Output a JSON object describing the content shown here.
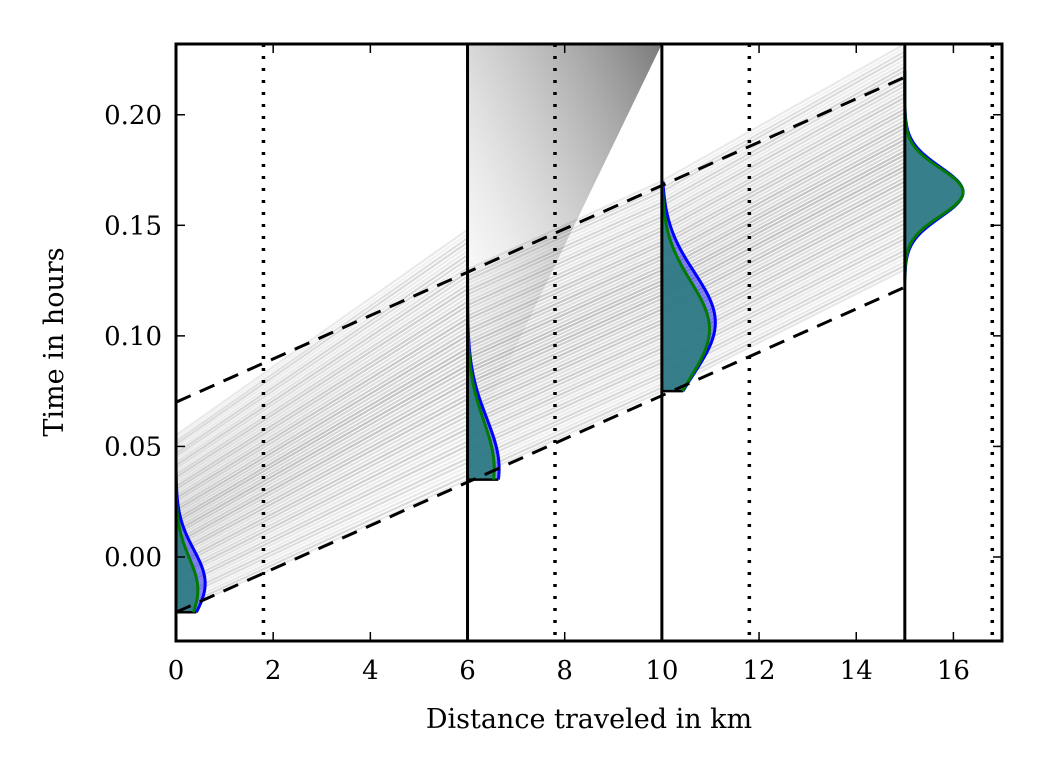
{
  "chart_data": {
    "type": "line",
    "title": "",
    "xlabel": "Distance traveled in km",
    "ylabel": "Time in hours",
    "xlim": [
      0,
      17
    ],
    "ylim": [
      -0.038,
      0.232
    ],
    "x_ticks": [
      0,
      2,
      4,
      6,
      8,
      10,
      12,
      14,
      16
    ],
    "x_tick_labels": [
      "0",
      "2",
      "4",
      "6",
      "8",
      "10",
      "12",
      "14",
      "16"
    ],
    "y_ticks": [
      0.0,
      0.05,
      0.1,
      0.15,
      0.2
    ],
    "y_tick_labels": [
      "0.00",
      "0.05",
      "0.10",
      "0.15",
      "0.20"
    ],
    "grid": false,
    "legend": "none",
    "station_lines_km": [
      6,
      10,
      15
    ],
    "dotted_lines_km": [
      1.8,
      7.8,
      11.8,
      16.8
    ],
    "envelope_lines": [
      {
        "x": [
          0,
          15
        ],
        "y": [
          0.07,
          0.217
        ]
      },
      {
        "x": [
          0,
          15
        ],
        "y": [
          -0.025,
          0.122
        ]
      }
    ],
    "trajectory_segments": [
      {
        "x_start": 0,
        "x_end": 6,
        "y_start_range": [
          -0.025,
          0.055
        ],
        "y_end_range": [
          0.035,
          0.148
        ],
        "count": 60
      },
      {
        "x_start": 6,
        "x_end": 10,
        "y_start_range": [
          0.035,
          0.13
        ],
        "y_end_range": [
          0.075,
          0.17
        ],
        "count": 60
      },
      {
        "x_start": 10,
        "x_end": 15,
        "y_start_range": [
          0.075,
          0.17
        ],
        "y_end_range": [
          0.13,
          0.232
        ],
        "count": 60
      }
    ],
    "fan_region": {
      "x": [
        6,
        10
      ],
      "y_bottom_start": 0.05,
      "y_top": 0.232
    },
    "distributions": [
      {
        "x_base": 0,
        "y_min": -0.025,
        "y_max": 0.045,
        "blue_peak_y": -0.012,
        "blue_peak_width": 0.6,
        "green_peak_y": -0.015,
        "green_peak_width": 0.45
      },
      {
        "x_base": 6,
        "y_min": 0.035,
        "y_max": 0.13,
        "blue_peak_y": 0.04,
        "blue_peak_width": 0.65,
        "green_peak_y": 0.04,
        "green_peak_width": 0.55
      },
      {
        "x_base": 10,
        "y_min": 0.075,
        "y_max": 0.17,
        "blue_peak_y": 0.106,
        "blue_peak_width": 1.1,
        "green_peak_y": 0.103,
        "green_peak_width": 0.98
      },
      {
        "x_base": 15,
        "y_min": 0.125,
        "y_max": 0.22,
        "blue_peak_y": 0.165,
        "blue_peak_width": 1.2,
        "green_peak_y": 0.165,
        "green_peak_width": 1.2
      }
    ],
    "colors": {
      "trajectories": "#888888",
      "blue": "#0000ff",
      "green": "#007a00",
      "fill": "#2e7d7d",
      "axes": "#000000"
    }
  }
}
